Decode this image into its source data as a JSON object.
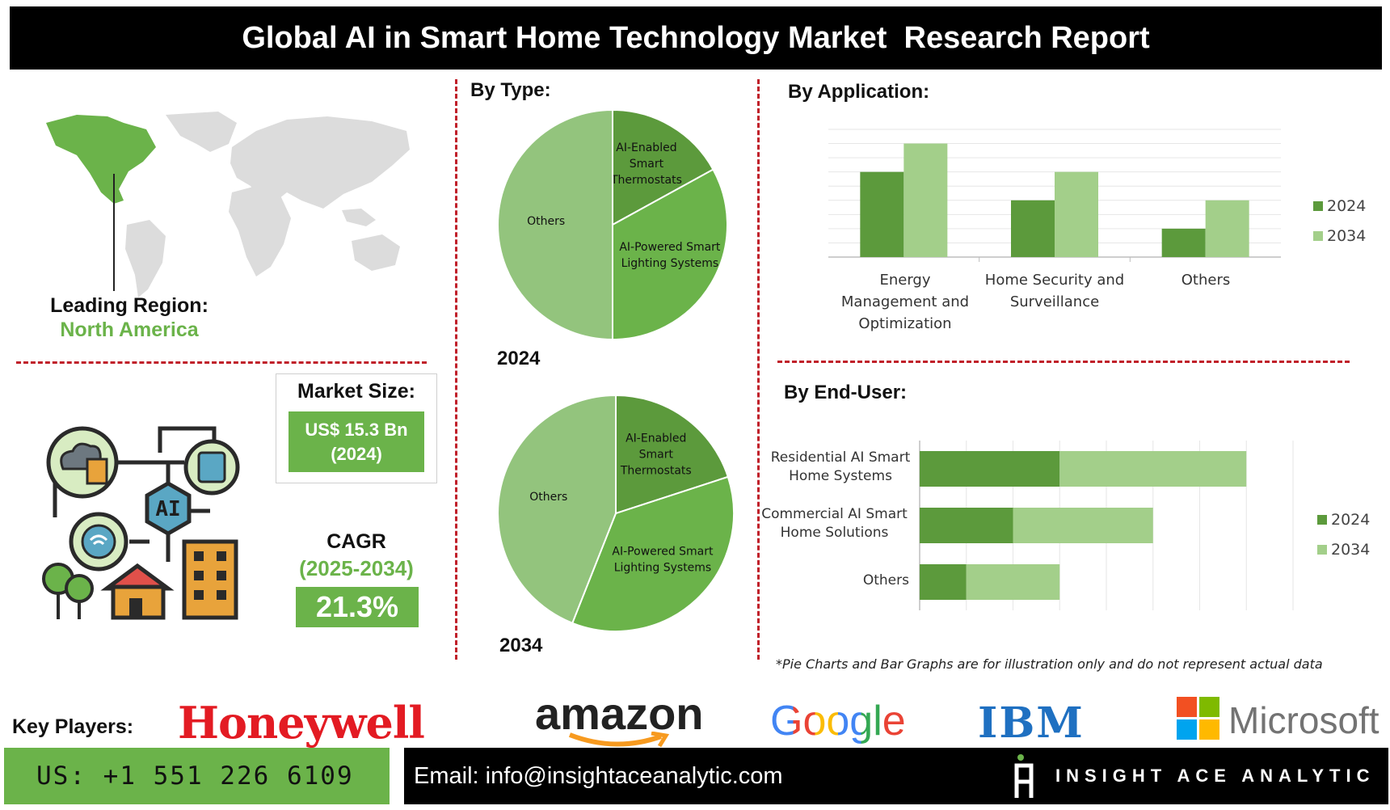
{
  "header": {
    "title": "Global AI in Smart Home Technology Market  Research Report"
  },
  "region": {
    "label": "Leading Region:",
    "value": "North America"
  },
  "market_size": {
    "label": "Market Size:",
    "value_line1": "US$ 15.3 Bn",
    "value_line2": "(2024)"
  },
  "cagr": {
    "label": "CAGR",
    "period": "(2025-2034)",
    "value": "21.3%"
  },
  "sections": {
    "by_type": "By Type:",
    "by_application": "By Application:",
    "by_end_user": "By End-User:"
  },
  "note": "*Pie Charts and Bar Graphs are for illustration only and do not represent actual data",
  "key_players": {
    "label": "Key Players:",
    "logos": [
      "Honeywell",
      "amazon",
      "Google",
      "IBM",
      "Microsoft"
    ]
  },
  "footer": {
    "phone": "US: +1 551 226 6109",
    "email": "Email: info@insightaceanalytic.com",
    "brand": "INSIGHT ACE ANALYTIC"
  },
  "colors": {
    "dark_green": "#5c9a3c",
    "light_green": "#a3cf8a",
    "mid_green": "#6bb34a",
    "accent_red": "#c0202a"
  },
  "chart_data": [
    {
      "type": "pie",
      "title": "2024",
      "slices": [
        {
          "label": "AI-Enabled Smart Thermostats",
          "value": 17
        },
        {
          "label": "AI-Powered Smart Lighting Systems",
          "value": 33
        },
        {
          "label": "Others",
          "value": 50
        }
      ]
    },
    {
      "type": "pie",
      "title": "2034",
      "slices": [
        {
          "label": "AI-Enabled Smart Thermostats",
          "value": 20
        },
        {
          "label": "AI-Powered Smart Lighting Systems",
          "value": 36
        },
        {
          "label": "Others",
          "value": 44
        }
      ]
    },
    {
      "type": "bar",
      "categories": [
        "Energy Management and Optimization",
        "Home Security and Surveillance",
        "Others"
      ],
      "series": [
        {
          "name": "2024",
          "values": [
            6,
            4,
            2
          ]
        },
        {
          "name": "2034",
          "values": [
            8,
            6,
            4
          ]
        }
      ],
      "ylim": [
        0,
        9
      ],
      "grid": true,
      "legend": "right"
    },
    {
      "type": "bar",
      "orientation": "horizontal",
      "stacked": true,
      "categories": [
        "Residential AI Smart Home Systems",
        "Commercial AI Smart Home Solutions",
        "Others"
      ],
      "series": [
        {
          "name": "2024",
          "values": [
            3,
            2,
            1
          ]
        },
        {
          "name": "2034",
          "values": [
            4,
            3,
            2
          ]
        }
      ],
      "xlim": [
        0,
        8
      ],
      "grid": true,
      "legend": "right"
    }
  ]
}
